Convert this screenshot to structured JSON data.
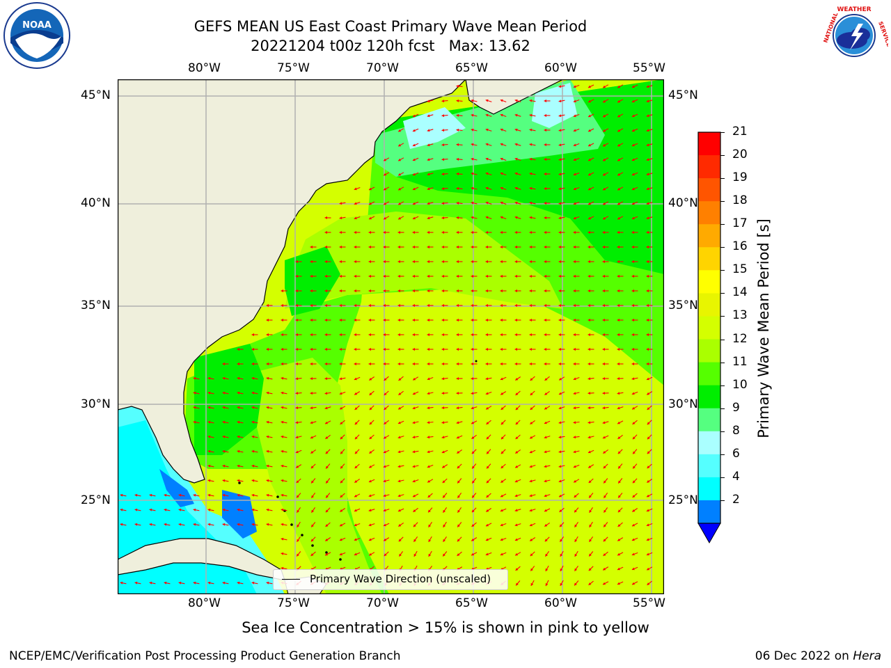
{
  "title": {
    "line1": "GEFS MEAN US East Coast Primary Wave Mean Period",
    "line2": "20221204 t00z 120h fcst   Max: 13.62"
  },
  "axes": {
    "lon_ticks": [
      "80°W",
      "75°W",
      "70°W",
      "65°W",
      "60°W",
      "55°W"
    ],
    "lat_ticks": [
      "45°N",
      "40°N",
      "35°N",
      "30°N",
      "25°N"
    ]
  },
  "colorbar": {
    "label": "Primary Wave Mean Period [s]",
    "ticks": [
      "21",
      "20",
      "19",
      "18",
      "17",
      "16",
      "15",
      "14",
      "13",
      "12",
      "11",
      "10",
      "9",
      "8",
      "6",
      "4",
      "2"
    ],
    "colors": [
      "#ff0000",
      "#ff2a00",
      "#ff5500",
      "#ff8000",
      "#ffaa00",
      "#ffd400",
      "#ffff00",
      "#e8f500",
      "#d4ff00",
      "#aaff00",
      "#55ff00",
      "#00ee00",
      "#55ff80",
      "#aaffff",
      "#55ffff",
      "#00ffff",
      "#0080ff"
    ],
    "extend_color": "#0000ff"
  },
  "legend": {
    "label": "Primary Wave Direction (unscaled)"
  },
  "colors": {
    "land": "#efefdc",
    "arrow": "#ff0000",
    "grid": "#b0b0b0"
  },
  "logos": {
    "left": "NOAA",
    "right": "NATIONAL WEATHER SERVICE"
  },
  "bottom_note": "Sea Ice Concentration > 15% is shown in pink to yellow",
  "footer": {
    "left": "NCEP/EMC/Verification Post Processing Product Generation Branch",
    "right_date": "06 Dec 2022 on ",
    "right_host": "Hera"
  }
}
